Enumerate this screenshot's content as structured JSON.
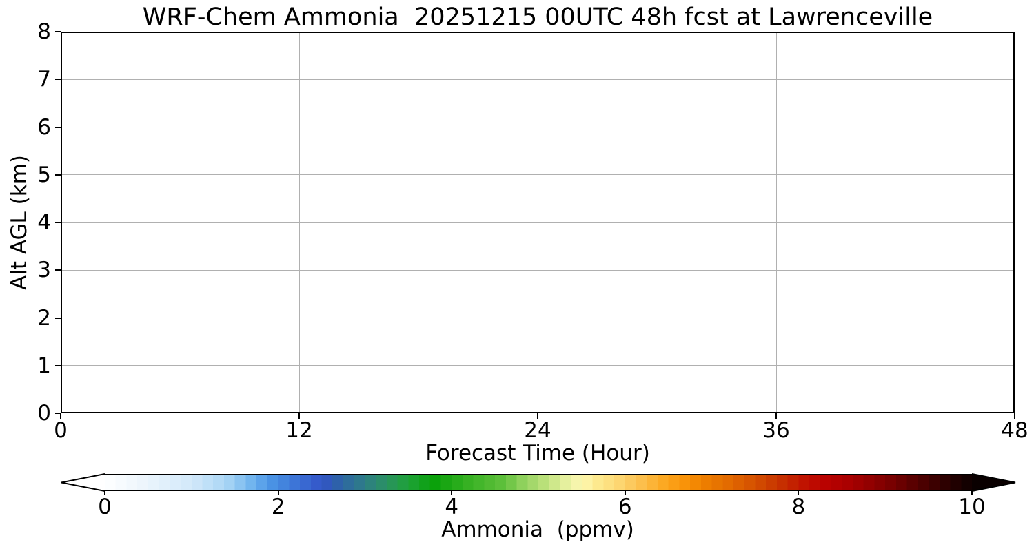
{
  "chart_data": {
    "type": "heatmap",
    "title": "WRF-Chem Ammonia  20251215 00UTC 48h fcst at Lawrenceville",
    "xlabel": "Forecast Time (Hour)",
    "ylabel": "Alt AGL (km)",
    "xlim": [
      0,
      48
    ],
    "ylim": [
      0,
      8
    ],
    "xticks": [
      0,
      12,
      24,
      36,
      48
    ],
    "yticks": [
      0,
      1,
      2,
      3,
      4,
      5,
      6,
      7,
      8
    ],
    "grid": true,
    "grid_color": "#b0b0b0",
    "axis_color": "#000000",
    "background_color": "#ffffff",
    "field": {
      "description": "Time-height cross-section is entirely blank/white: forecast ammonia concentration is ~0 ppmv at all altitudes (0-8 km AGL) and all forecast hours (0-48).",
      "uniform_value_ppmv": 0
    },
    "colorbar": {
      "label": "Ammonia  (ppmv)",
      "ticks": [
        0,
        2,
        4,
        6,
        8,
        10
      ],
      "range": [
        0,
        10
      ],
      "orientation": "horizontal",
      "extend": "both",
      "under_color": "#ffffff",
      "over_color": "#0a0000",
      "n_bands": 80,
      "stops": [
        [
          0.0,
          "#ffffff"
        ],
        [
          0.05,
          "#eaf4fc"
        ],
        [
          0.1,
          "#d2e8fa"
        ],
        [
          0.14,
          "#aad6f5"
        ],
        [
          0.17,
          "#70b4ee"
        ],
        [
          0.19,
          "#4c96e6"
        ],
        [
          0.22,
          "#3c74d6"
        ],
        [
          0.25,
          "#3354c8"
        ],
        [
          0.27,
          "#2e62a8"
        ],
        [
          0.3,
          "#2e7e86"
        ],
        [
          0.325,
          "#2a9260"
        ],
        [
          0.35,
          "#1ea238"
        ],
        [
          0.38,
          "#0aa00a"
        ],
        [
          0.42,
          "#38b224"
        ],
        [
          0.46,
          "#60c03c"
        ],
        [
          0.48,
          "#8cd05a"
        ],
        [
          0.51,
          "#c0e27e"
        ],
        [
          0.535,
          "#ecf2a4"
        ],
        [
          0.55,
          "#fdf8b2"
        ],
        [
          0.565,
          "#fdec92"
        ],
        [
          0.59,
          "#fdd976"
        ],
        [
          0.615,
          "#fcc252"
        ],
        [
          0.64,
          "#fcac28"
        ],
        [
          0.665,
          "#fb960a"
        ],
        [
          0.69,
          "#ee8000"
        ],
        [
          0.72,
          "#e26a00"
        ],
        [
          0.75,
          "#d45000"
        ],
        [
          0.78,
          "#c63000"
        ],
        [
          0.805,
          "#c01400"
        ],
        [
          0.83,
          "#ba0200"
        ],
        [
          0.86,
          "#a80000"
        ],
        [
          0.9,
          "#800000"
        ],
        [
          0.94,
          "#500000"
        ],
        [
          0.97,
          "#2c0000"
        ],
        [
          1.0,
          "#0c0000"
        ]
      ]
    }
  }
}
